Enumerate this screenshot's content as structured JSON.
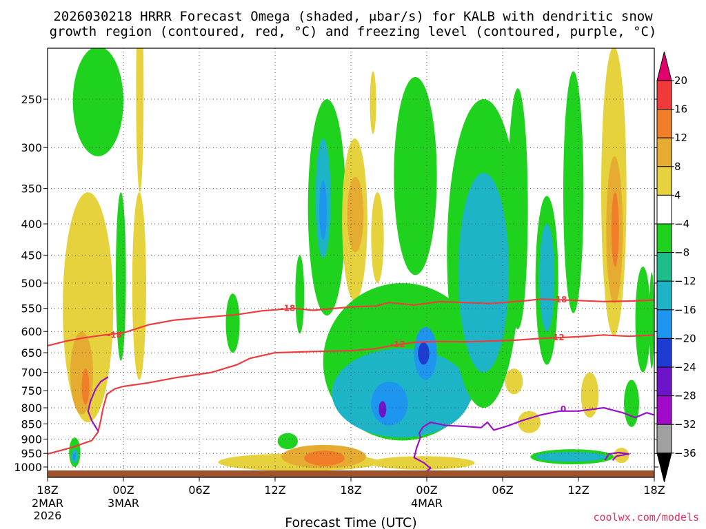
{
  "title_line1": "2026030218 HRRR Forecast Omega (shaded, μbar/s) for KALB with dendritic snow",
  "title_line2": "growth region (contoured, red, °C) and freezing level (contoured, purple, °C)",
  "footer": "coolwx.com/models",
  "chart_data": {
    "type": "heatmap",
    "title": "2026030218 HRRR Forecast Omega (shaded, μbar/s) for KALB with dendritic snow growth region (contoured, red, °C) and freezing level (contoured, purple, °C)",
    "xlabel": "Forecast Time (UTC)",
    "ylabel": "",
    "x_unit": "forecast hours from 2026-03-02 18Z",
    "xlim": [
      0,
      48
    ],
    "ylim_pressure_hPa": [
      1030,
      200
    ],
    "y_scale": "log (pressure)",
    "grid": true,
    "x_ticks": [
      {
        "h": 0,
        "label": "18Z",
        "sub1": "2MAR",
        "sub2": "2026"
      },
      {
        "h": 6,
        "label": "00Z",
        "sub1": "3MAR",
        "sub2": ""
      },
      {
        "h": 12,
        "label": "06Z",
        "sub1": "",
        "sub2": ""
      },
      {
        "h": 18,
        "label": "12Z",
        "sub1": "",
        "sub2": ""
      },
      {
        "h": 24,
        "label": "18Z",
        "sub1": "",
        "sub2": ""
      },
      {
        "h": 30,
        "label": "00Z",
        "sub1": "4MAR",
        "sub2": ""
      },
      {
        "h": 36,
        "label": "06Z",
        "sub1": "",
        "sub2": ""
      },
      {
        "h": 42,
        "label": "12Z",
        "sub1": "",
        "sub2": ""
      },
      {
        "h": 48,
        "label": "18Z",
        "sub1": "",
        "sub2": ""
      }
    ],
    "y_ticks": [
      {
        "p": 250,
        "label": "250"
      },
      {
        "p": 300,
        "label": "300"
      },
      {
        "p": 350,
        "label": "350"
      },
      {
        "p": 400,
        "label": "400"
      },
      {
        "p": 450,
        "label": "450"
      },
      {
        "p": 500,
        "label": "500"
      },
      {
        "p": 550,
        "label": "550"
      },
      {
        "p": 600,
        "label": "600"
      },
      {
        "p": 650,
        "label": "650"
      },
      {
        "p": 700,
        "label": "700"
      },
      {
        "p": 750,
        "label": "750"
      },
      {
        "p": 800,
        "label": "800"
      },
      {
        "p": 850,
        "label": "850"
      },
      {
        "p": 900,
        "label": "900"
      },
      {
        "p": 950,
        "label": "950"
      },
      {
        "p": 1000,
        "label": "1000"
      }
    ],
    "colorbar": {
      "labels": [
        "20",
        "16",
        "12",
        "8",
        "4",
        "−4",
        "−8",
        "−12",
        "−16",
        "−20",
        "−24",
        "−28",
        "−32",
        "−36"
      ],
      "colors": [
        "#e0006e",
        "#f03a3a",
        "#f07d28",
        "#e6ac32",
        "#e6d23c",
        "#ffffff",
        "#1ed21e",
        "#1ebe8c",
        "#1eb4c8",
        "#1e96f0",
        "#1e3cd2",
        "#6e14c8",
        "#a00ac8",
        "#a0a0a0",
        "#000000"
      ]
    },
    "omega_regions": [
      {
        "t0": 2.0,
        "t1": 6.0,
        "p0": 205,
        "p1": 310,
        "v": -6
      },
      {
        "t0": 1.2,
        "t1": 5.2,
        "p0": 355,
        "p1": 845,
        "v": 5
      },
      {
        "t0": 1.8,
        "t1": 3.6,
        "p0": 600,
        "p1": 820,
        "v": 9
      },
      {
        "t0": 2.7,
        "t1": 3.3,
        "p0": 690,
        "p1": 790,
        "v": 13
      },
      {
        "t0": 1.7,
        "t1": 2.6,
        "p0": 895,
        "p1": 1000,
        "v": -6
      },
      {
        "t0": 1.9,
        "t1": 2.4,
        "p0": 935,
        "p1": 985,
        "v": -12
      },
      {
        "t0": 2.0,
        "t1": 2.2,
        "p0": 950,
        "p1": 975,
        "v": -16
      },
      {
        "t0": 5.4,
        "t1": 6.2,
        "p0": 355,
        "p1": 670,
        "v": -6
      },
      {
        "t0": 7.0,
        "t1": 7.6,
        "p0": 165,
        "p1": 355,
        "v": 5
      },
      {
        "t0": 6.7,
        "t1": 7.8,
        "p0": 355,
        "p1": 720,
        "v": 5
      },
      {
        "t0": 14.1,
        "t1": 15.2,
        "p0": 520,
        "p1": 650,
        "v": -6
      },
      {
        "t0": 19.6,
        "t1": 20.3,
        "p0": 450,
        "p1": 605,
        "v": -6
      },
      {
        "t0": 18.2,
        "t1": 19.8,
        "p0": 880,
        "p1": 935,
        "v": -6
      },
      {
        "t0": 13.5,
        "t1": 26.3,
        "p0": 950,
        "p1": 1015,
        "v": 5
      },
      {
        "t0": 18.5,
        "t1": 25.2,
        "p0": 920,
        "p1": 1005,
        "v": 9
      },
      {
        "t0": 20.3,
        "t1": 23.5,
        "p0": 940,
        "p1": 995,
        "v": 13
      },
      {
        "t0": 25.5,
        "t1": 33.8,
        "p0": 960,
        "p1": 1010,
        "v": 5
      },
      {
        "t0": 20.6,
        "t1": 23.6,
        "p0": 250,
        "p1": 565,
        "v": -6
      },
      {
        "t0": 21.2,
        "t1": 22.4,
        "p0": 290,
        "p1": 455,
        "v": -12
      },
      {
        "t0": 21.5,
        "t1": 22.1,
        "p0": 340,
        "p1": 425,
        "v": -16
      },
      {
        "t0": 23.3,
        "t1": 25.3,
        "p0": 290,
        "p1": 535,
        "v": 5
      },
      {
        "t0": 23.7,
        "t1": 25.0,
        "p0": 335,
        "p1": 445,
        "v": 9
      },
      {
        "t0": 25.6,
        "t1": 26.6,
        "p0": 355,
        "p1": 500,
        "v": 5
      },
      {
        "t0": 25.5,
        "t1": 26.0,
        "p0": 225,
        "p1": 285,
        "v": 5
      },
      {
        "t0": 21.8,
        "t1": 34.3,
        "p0": 500,
        "p1": 905,
        "v": -6
      },
      {
        "t0": 22.5,
        "t1": 33.5,
        "p0": 640,
        "p1": 895,
        "v": -12
      },
      {
        "t0": 25.6,
        "t1": 28.5,
        "p0": 725,
        "p1": 855,
        "v": -16
      },
      {
        "t0": 29.0,
        "t1": 30.8,
        "p0": 590,
        "p1": 720,
        "v": -16
      },
      {
        "t0": 29.3,
        "t1": 30.2,
        "p0": 625,
        "p1": 680,
        "v": -20
      },
      {
        "t0": 26.2,
        "t1": 26.8,
        "p0": 780,
        "p1": 830,
        "v": -24
      },
      {
        "t0": 27.4,
        "t1": 30.8,
        "p0": 230,
        "p1": 485,
        "v": -6
      },
      {
        "t0": 31.6,
        "t1": 37.4,
        "p0": 250,
        "p1": 800,
        "v": -6
      },
      {
        "t0": 32.5,
        "t1": 36.5,
        "p0": 330,
        "p1": 700,
        "v": -12
      },
      {
        "t0": 36.4,
        "t1": 38.0,
        "p0": 240,
        "p1": 595,
        "v": -6
      },
      {
        "t0": 38.6,
        "t1": 40.4,
        "p0": 360,
        "p1": 680,
        "v": -6
      },
      {
        "t0": 38.9,
        "t1": 40.1,
        "p0": 400,
        "p1": 600,
        "v": -12
      },
      {
        "t0": 40.8,
        "t1": 42.4,
        "p0": 225,
        "p1": 560,
        "v": -6
      },
      {
        "t0": 42.2,
        "t1": 43.6,
        "p0": 700,
        "p1": 830,
        "v": 5
      },
      {
        "t0": 43.8,
        "t1": 45.8,
        "p0": 205,
        "p1": 610,
        "v": 5
      },
      {
        "t0": 44.2,
        "t1": 45.5,
        "p0": 310,
        "p1": 540,
        "v": 9
      },
      {
        "t0": 44.6,
        "t1": 45.2,
        "p0": 355,
        "p1": 470,
        "v": 13
      },
      {
        "t0": 46.5,
        "t1": 47.7,
        "p0": 470,
        "p1": 700,
        "v": -6
      },
      {
        "t0": 47.6,
        "t1": 48.0,
        "p0": 480,
        "p1": 690,
        "v": -6
      },
      {
        "t0": 38.2,
        "t1": 44.8,
        "p0": 935,
        "p1": 990,
        "v": -6
      },
      {
        "t0": 38.6,
        "t1": 44.2,
        "p0": 945,
        "p1": 980,
        "v": -12
      },
      {
        "t0": 45.6,
        "t1": 46.8,
        "p0": 720,
        "p1": 860,
        "v": -6
      },
      {
        "t0": 36.2,
        "t1": 37.6,
        "p0": 690,
        "p1": 760,
        "v": 5
      },
      {
        "t0": 37.2,
        "t1": 39.0,
        "p0": 810,
        "p1": 880,
        "v": 5
      },
      {
        "t0": 44.8,
        "t1": 46.0,
        "p0": 930,
        "p1": 985,
        "v": 5
      }
    ],
    "contours": [
      {
        "name": "-18",
        "color": "#ee3c3c",
        "points": [
          [
            0,
            633
          ],
          [
            1.5,
            622
          ],
          [
            3,
            614
          ],
          [
            4.5,
            608
          ],
          [
            6,
            603
          ],
          [
            8,
            585
          ],
          [
            10,
            575
          ],
          [
            12,
            570
          ],
          [
            15,
            563
          ],
          [
            17,
            555
          ],
          [
            19.5,
            550
          ],
          [
            21,
            554
          ],
          [
            24,
            547
          ],
          [
            26,
            545
          ],
          [
            27,
            538
          ],
          [
            29,
            543
          ],
          [
            31,
            536
          ],
          [
            33,
            538
          ],
          [
            35,
            540
          ],
          [
            36,
            538
          ],
          [
            38,
            534
          ],
          [
            39,
            531
          ],
          [
            42,
            534
          ],
          [
            44,
            536
          ],
          [
            46,
            535
          ],
          [
            48,
            533
          ]
        ],
        "labels": [
          {
            "h": 5.3,
            "p": 608,
            "text": "-18"
          },
          {
            "h": 19.0,
            "p": 550,
            "text": "-18"
          },
          {
            "h": 40.5,
            "p": 532,
            "text": "-18"
          }
        ]
      },
      {
        "name": "-12",
        "color": "#ee3c3c",
        "points": [
          [
            0,
            952
          ],
          [
            2,
            928
          ],
          [
            3.5,
            905
          ],
          [
            4,
            876
          ],
          [
            4.2,
            840
          ],
          [
            4.4,
            800
          ],
          [
            4.7,
            760
          ],
          [
            5.3,
            745
          ],
          [
            6,
            738
          ],
          [
            8,
            728
          ],
          [
            10,
            715
          ],
          [
            13,
            700
          ],
          [
            15,
            680
          ],
          [
            16,
            664
          ],
          [
            18,
            650
          ],
          [
            21,
            647
          ],
          [
            24,
            645
          ],
          [
            26,
            640
          ],
          [
            27,
            634
          ],
          [
            29,
            625
          ],
          [
            31,
            623
          ],
          [
            33,
            624
          ],
          [
            35,
            622
          ],
          [
            37,
            620
          ],
          [
            39,
            616
          ],
          [
            42,
            612
          ],
          [
            44,
            608
          ],
          [
            46,
            611
          ],
          [
            48,
            608
          ]
        ],
        "labels": [
          {
            "h": 27.7,
            "p": 630,
            "text": "-12"
          },
          {
            "h": 40.3,
            "p": 614,
            "text": "-12"
          }
        ]
      },
      {
        "name": "0",
        "color": "#9a10c8",
        "points": [
          [
            4,
            873
          ],
          [
            3.5,
            840
          ],
          [
            3.2,
            810
          ],
          [
            3.4,
            780
          ],
          [
            3.8,
            745
          ],
          [
            4.2,
            725
          ],
          [
            4.8,
            712
          ]
        ],
        "labels": []
      },
      {
        "name": "0",
        "color": "#9a10c8",
        "points": [
          [
            28.8,
            1023
          ],
          [
            30,
            1015
          ],
          [
            30.3,
            1005
          ],
          [
            29.8,
            985
          ],
          [
            29.0,
            965
          ],
          [
            29.2,
            930
          ],
          [
            29.5,
            895
          ],
          [
            29.4,
            880
          ],
          [
            29.7,
            860
          ],
          [
            30.3,
            845
          ],
          [
            31.5,
            855
          ],
          [
            33,
            858
          ],
          [
            34.3,
            862
          ],
          [
            34.8,
            845
          ],
          [
            35.3,
            870
          ],
          [
            36.5,
            855
          ],
          [
            37.5,
            840
          ],
          [
            39,
            822
          ],
          [
            40.5,
            810
          ],
          [
            42,
            810
          ],
          [
            44,
            800
          ],
          [
            45.5,
            815
          ],
          [
            46.5,
            830
          ],
          [
            47.4,
            815
          ],
          [
            48,
            822
          ]
        ],
        "labels": [
          {
            "h": 40.8,
            "p": 804,
            "text": "0"
          }
        ]
      },
      {
        "name": "0",
        "color": "#9a10c8",
        "points": [
          [
            44.1,
            975
          ],
          [
            44.4,
            952
          ],
          [
            45.2,
            947
          ],
          [
            46,
            952
          ],
          [
            45.0,
            960
          ],
          [
            44.7,
            975
          ]
        ],
        "labels": []
      }
    ]
  }
}
